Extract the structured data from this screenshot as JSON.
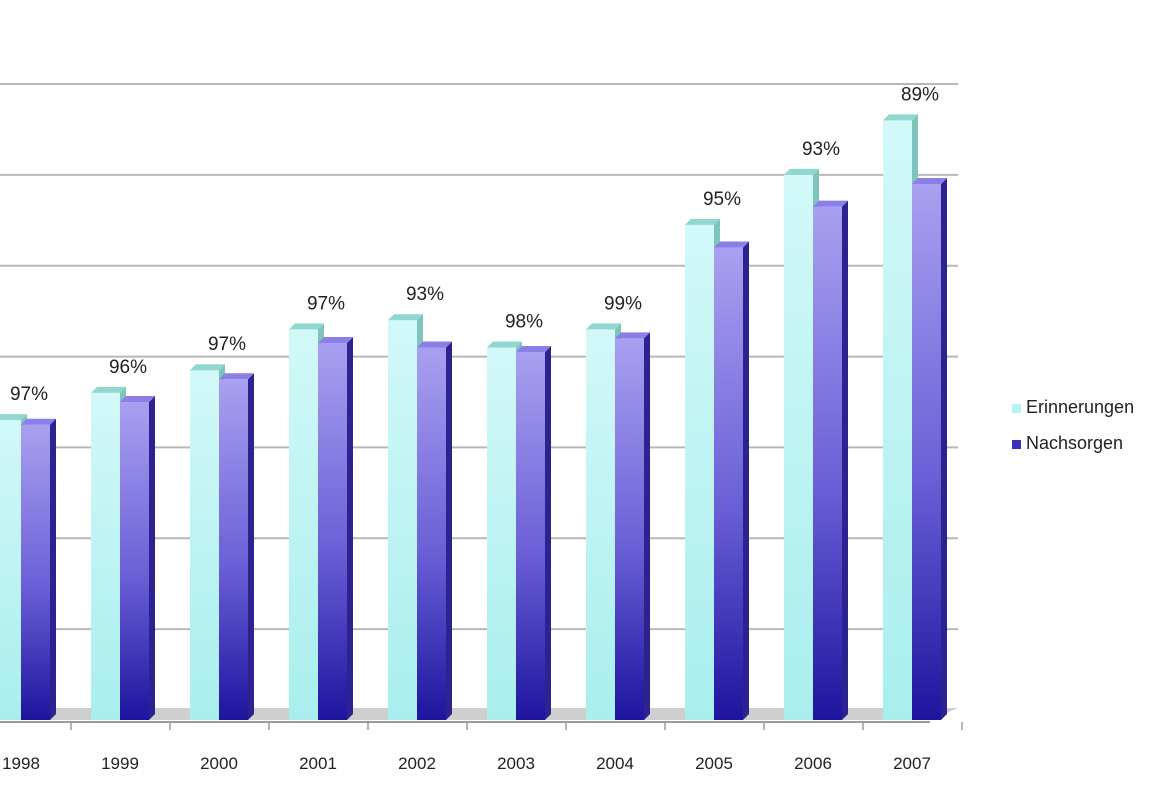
{
  "chart_data": {
    "type": "bar",
    "title": "",
    "xlabel": "",
    "ylabel": "",
    "categories": [
      "1998",
      "1999",
      "2000",
      "2001",
      "2002",
      "2003",
      "2004",
      "2005",
      "2006",
      "2007"
    ],
    "series": [
      {
        "name": "Erinnerungen",
        "values": [
          33,
          36,
          38.5,
          43,
          44,
          41,
          43,
          54.5,
          60,
          66
        ]
      },
      {
        "name": "Nachsorgen",
        "values": [
          32.5,
          35,
          37.5,
          41.5,
          41,
          40.5,
          42,
          52,
          56.5,
          59
        ]
      }
    ],
    "data_labels": [
      "97%",
      "96%",
      "97%",
      "97%",
      "93%",
      "98%",
      "99%",
      "95%",
      "93%",
      "89%"
    ],
    "ylim": [
      0,
      70
    ],
    "gridlines": true,
    "y_tick_labels_visible": false,
    "legend_position": "right",
    "colors": {
      "Erinnerungen": "#bff3f3",
      "Nachsorgen": "#5a4fc8"
    }
  }
}
